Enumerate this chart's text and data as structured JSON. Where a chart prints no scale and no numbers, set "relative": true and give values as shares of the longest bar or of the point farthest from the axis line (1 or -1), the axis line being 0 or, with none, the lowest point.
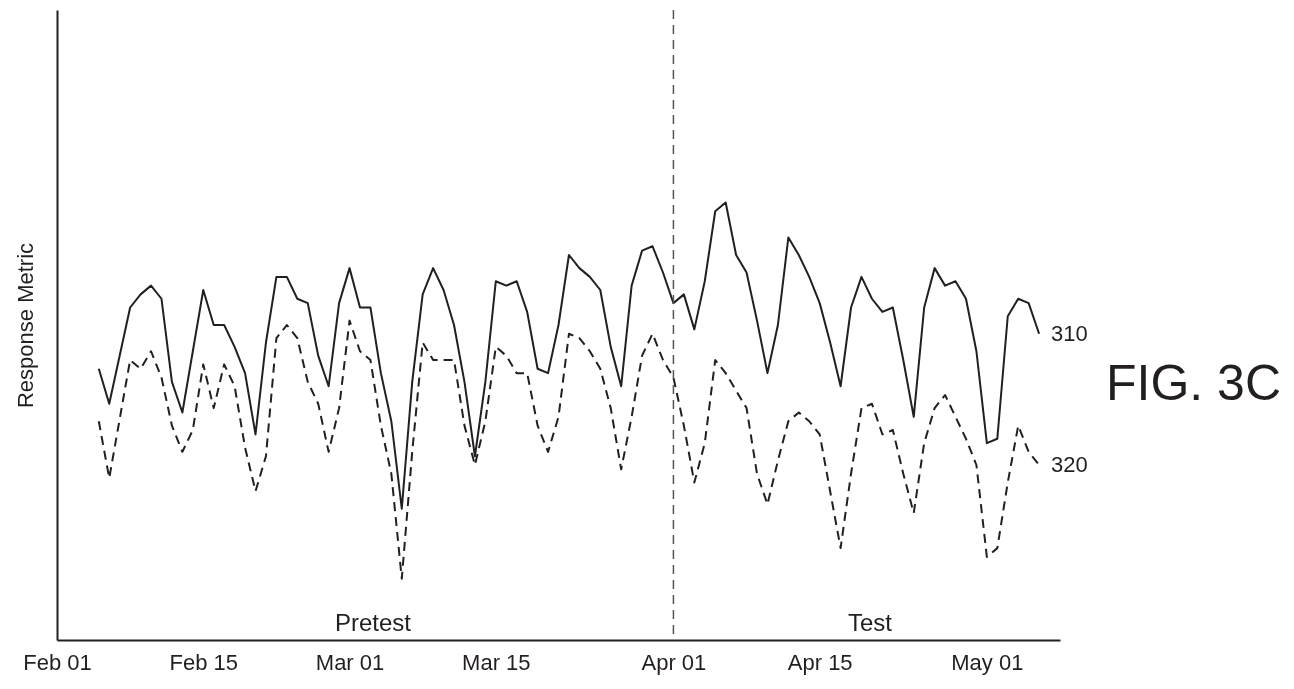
{
  "chart_data": {
    "type": "line",
    "relative": true,
    "ylabel": "Response Metric",
    "xlim": [
      "--02-01",
      "--05-08"
    ],
    "xticks": [
      {
        "value": "--02-01",
        "label": "Feb 01"
      },
      {
        "value": "--02-15",
        "label": "Feb 15"
      },
      {
        "value": "--03-01",
        "label": "Mar 01"
      },
      {
        "value": "--03-15",
        "label": "Mar 15"
      },
      {
        "value": "--04-01",
        "label": "Apr 01"
      },
      {
        "value": "--04-15",
        "label": "Apr 15"
      },
      {
        "value": "--05-01",
        "label": "May 01"
      }
    ],
    "series": [
      {
        "name": "310",
        "color": "#231f20",
        "line_style": "solid",
        "x": [
          "--02-05",
          "--02-06",
          "--02-08",
          "--02-09",
          "--02-10",
          "--02-11",
          "--02-12",
          "--02-13",
          "--02-15",
          "--02-16",
          "--02-17",
          "--02-18",
          "--02-19",
          "--02-20",
          "--02-21",
          "--02-22",
          "--02-23",
          "--02-24",
          "--02-25",
          "--02-26",
          "--02-27",
          "--02-28",
          "--03-01",
          "--03-02",
          "--03-03",
          "--03-04",
          "--03-05",
          "--03-06",
          "--03-07",
          "--03-08",
          "--03-09",
          "--03-10",
          "--03-11",
          "--03-12",
          "--03-13",
          "--03-14",
          "--03-15",
          "--03-16",
          "--03-17",
          "--03-18",
          "--03-19",
          "--03-20",
          "--03-21",
          "--03-22",
          "--03-23",
          "--03-24",
          "--03-25",
          "--03-26",
          "--03-27",
          "--03-28",
          "--03-29",
          "--03-30",
          "--03-31",
          "--04-01",
          "--04-02",
          "--04-03",
          "--04-04",
          "--04-05",
          "--04-06",
          "--04-07",
          "--04-08",
          "--04-09",
          "--04-10",
          "--04-11",
          "--04-12",
          "--04-13",
          "--04-14",
          "--04-15",
          "--04-16",
          "--04-17",
          "--04-18",
          "--04-19",
          "--04-20",
          "--04-21",
          "--04-22",
          "--04-23",
          "--04-24",
          "--04-25",
          "--04-26",
          "--04-27",
          "--04-28",
          "--04-29",
          "--04-30",
          "--05-01",
          "--05-02",
          "--05-03",
          "--05-04",
          "--05-05",
          "--05-06"
        ],
        "values": [
          0.62,
          0.54,
          0.76,
          0.79,
          0.81,
          0.78,
          0.59,
          0.52,
          0.8,
          0.72,
          0.72,
          0.67,
          0.61,
          0.47,
          0.68,
          0.83,
          0.83,
          0.78,
          0.77,
          0.65,
          0.58,
          0.77,
          0.85,
          0.76,
          0.76,
          0.61,
          0.5,
          0.3,
          0.59,
          0.79,
          0.85,
          0.8,
          0.72,
          0.59,
          0.42,
          0.59,
          0.82,
          0.81,
          0.82,
          0.75,
          0.62,
          0.61,
          0.72,
          0.88,
          0.85,
          0.83,
          0.8,
          0.67,
          0.58,
          0.81,
          0.89,
          0.9,
          0.84,
          0.77,
          0.79,
          0.71,
          0.82,
          0.98,
          1,
          0.88,
          0.84,
          0.73,
          0.61,
          0.72,
          0.92,
          0.88,
          0.83,
          0.77,
          0.68,
          0.58,
          0.76,
          0.83,
          0.78,
          0.75,
          0.76,
          0.64,
          0.51,
          0.76,
          0.85,
          0.81,
          0.82,
          0.78,
          0.66,
          0.45,
          0.46,
          0.74,
          0.78,
          0.77,
          0.7
        ]
      },
      {
        "name": "320",
        "color": "#231f20",
        "line_style": "dashed",
        "x": [
          "--02-05",
          "--02-06",
          "--02-08",
          "--02-09",
          "--02-10",
          "--02-11",
          "--02-12",
          "--02-13",
          "--02-14",
          "--02-15",
          "--02-16",
          "--02-17",
          "--02-18",
          "--02-19",
          "--02-20",
          "--02-21",
          "--02-22",
          "--02-23",
          "--02-24",
          "--02-25",
          "--02-26",
          "--02-27",
          "--02-28",
          "--03-01",
          "--03-02",
          "--03-03",
          "--03-04",
          "--03-05",
          "--03-06",
          "--03-07",
          "--03-08",
          "--03-09",
          "--03-10",
          "--03-11",
          "--03-12",
          "--03-13",
          "--03-14",
          "--03-15",
          "--03-16",
          "--03-17",
          "--03-18",
          "--03-19",
          "--03-20",
          "--03-21",
          "--03-22",
          "--03-23",
          "--03-24",
          "--03-25",
          "--03-26",
          "--03-27",
          "--03-28",
          "--03-29",
          "--03-30",
          "--03-31",
          "--04-01",
          "--04-02",
          "--04-03",
          "--04-04",
          "--04-05",
          "--04-06",
          "--04-07",
          "--04-08",
          "--04-09",
          "--04-10",
          "--04-11",
          "--04-12",
          "--04-13",
          "--04-14",
          "--04-15",
          "--04-16",
          "--04-17",
          "--04-18",
          "--04-19",
          "--04-20",
          "--04-21",
          "--04-22",
          "--04-23",
          "--04-24",
          "--04-25",
          "--04-26",
          "--04-27",
          "--04-28",
          "--04-29",
          "--04-30",
          "--05-01",
          "--05-02",
          "--05-03",
          "--05-04",
          "--05-05",
          "--05-06"
        ],
        "values": [
          0.5,
          0.37,
          0.64,
          0.62,
          0.66,
          0.6,
          0.49,
          0.43,
          0.48,
          0.63,
          0.53,
          0.63,
          0.58,
          0.44,
          0.34,
          0.42,
          0.69,
          0.72,
          0.69,
          0.59,
          0.54,
          0.43,
          0.53,
          0.73,
          0.66,
          0.64,
          0.49,
          0.38,
          0.14,
          0.43,
          0.68,
          0.64,
          0.64,
          0.64,
          0.49,
          0.4,
          0.5,
          0.67,
          0.65,
          0.61,
          0.61,
          0.49,
          0.43,
          0.51,
          0.7,
          0.69,
          0.66,
          0.62,
          0.53,
          0.39,
          0.51,
          0.65,
          0.7,
          0.64,
          0.6,
          0.49,
          0.36,
          0.45,
          0.64,
          0.61,
          0.57,
          0.53,
          0.38,
          0.31,
          0.41,
          0.5,
          0.52,
          0.5,
          0.47,
          0.34,
          0.21,
          0.38,
          0.53,
          0.54,
          0.47,
          0.48,
          0.38,
          0.29,
          0.45,
          0.53,
          0.56,
          0.51,
          0.46,
          0.4,
          0.19,
          0.21,
          0.36,
          0.49,
          0.43,
          0.4
        ]
      }
    ],
    "ref_lines": [
      {
        "axis": "x",
        "value": "--04-01",
        "color": "#555555",
        "line_style": "dashed"
      }
    ],
    "annotations": [
      "Pretest",
      "Test",
      "FIG. 3C"
    ],
    "grid": false
  }
}
